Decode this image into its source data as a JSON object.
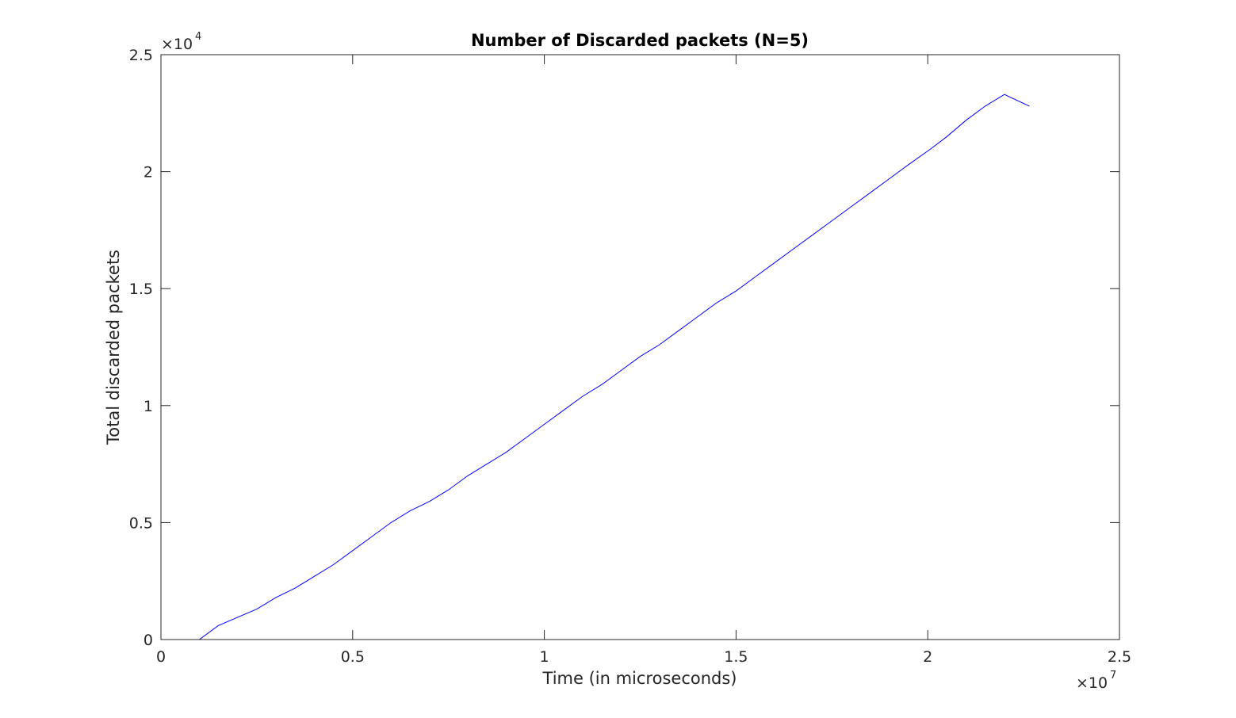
{
  "chart_data": {
    "type": "line",
    "title": "Number of Discarded packets (N=5)",
    "xlabel": "Time (in microseconds)",
    "ylabel": "Total discarded packets",
    "xlim": [
      0,
      25000000
    ],
    "ylim": [
      0,
      25000
    ],
    "x_ticks": [
      0,
      5000000,
      10000000,
      15000000,
      20000000,
      25000000
    ],
    "y_ticks": [
      0,
      5000,
      10000,
      15000,
      20000,
      25000
    ],
    "x_tick_labels": [
      "0",
      "0.5",
      "1",
      "1.5",
      "2",
      "2.5"
    ],
    "y_tick_labels": [
      "0",
      "0.5",
      "1",
      "1.5",
      "2",
      "2.5"
    ],
    "x_exponent": {
      "base": "×10",
      "power": "7"
    },
    "y_exponent": {
      "base": "×10",
      "power": "4"
    },
    "grid": false,
    "line_color": "#0000ff",
    "series": [
      {
        "x": [
          0,
          1000000,
          1500000,
          2500000,
          3000000,
          3500000,
          4000000,
          4500000,
          5000000,
          5500000,
          6000000,
          6500000,
          7000000,
          7500000,
          8000000,
          8500000,
          9000000,
          9500000,
          10000000,
          10500000,
          11000000,
          11500000,
          12000000,
          12500000,
          13000000,
          13500000,
          14000000,
          14500000,
          15000000,
          15500000,
          16000000,
          16500000,
          17000000,
          17500000,
          18000000,
          18500000,
          19000000,
          19500000,
          20100000,
          20500000,
          21000000,
          21500000,
          22000000,
          22650000
        ],
        "y": [
          0,
          0,
          600,
          1300,
          1800,
          2200,
          2700,
          3200,
          3800,
          4400,
          5000,
          5500,
          5900,
          6400,
          7000,
          7500,
          8000,
          8600,
          9200,
          9800,
          10400,
          10900,
          11500,
          12100,
          12600,
          13200,
          13800,
          14400,
          14900,
          15500,
          16100,
          16700,
          17300,
          17900,
          18500,
          19100,
          19700,
          20300,
          21000,
          21500,
          22200,
          22800,
          23300,
          22800
        ]
      }
    ]
  }
}
